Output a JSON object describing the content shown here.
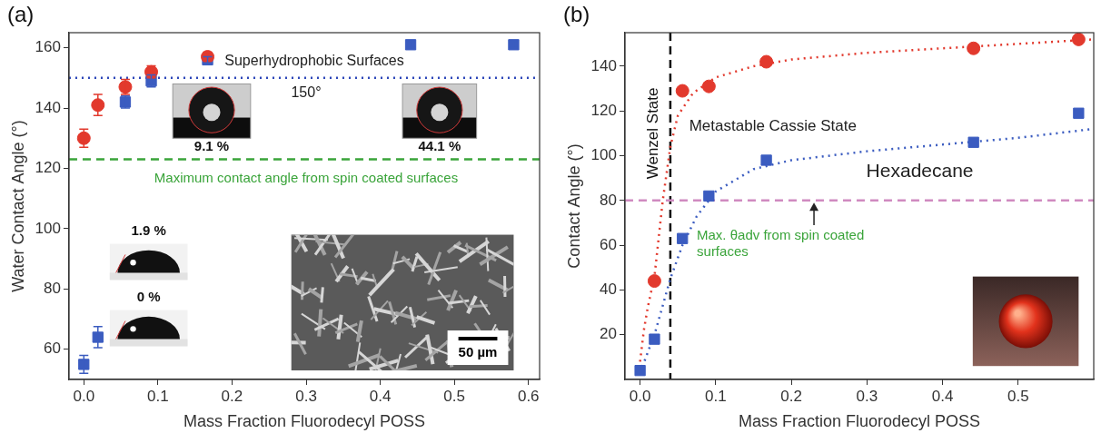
{
  "chart_data": [
    {
      "type": "scatter",
      "title": "(a)",
      "x_label": "Mass Fraction Fluorodecyl POSS",
      "y_label": "Water Contact Angle (°)",
      "xlim": [
        -0.02,
        0.615
      ],
      "xticks": [
        {
          "value": 0,
          "label": "0.0"
        },
        {
          "value": 0.1,
          "label": "0.1"
        },
        {
          "value": 0.2,
          "label": "0.2"
        },
        {
          "value": 0.3,
          "label": "0.3"
        },
        {
          "value": 0.4,
          "label": "0.4"
        },
        {
          "value": 0.5,
          "label": "0.5"
        },
        {
          "value": 0.6,
          "label": "0.6"
        }
      ],
      "ylim": [
        50,
        165
      ],
      "yticks": [
        60,
        80,
        100,
        120,
        140,
        160
      ],
      "grid": false,
      "series": [
        {
          "type": "scatter",
          "marker": "circle",
          "color": "#e2392d",
          "x": [
            0,
            0.019,
            0.056,
            0.091,
            0.167
          ],
          "values": [
            130,
            141,
            147,
            152,
            157
          ],
          "errors": [
            3,
            3.5,
            2.5,
            2,
            1.5
          ]
        },
        {
          "type": "scatter",
          "marker": "square",
          "color": "#3b5cc0",
          "x": [
            0,
            0.019,
            0.056,
            0.091,
            0.167,
            0.441,
            0.58
          ],
          "values": [
            55,
            64,
            142,
            149,
            156,
            161,
            161
          ],
          "errors": [
            3,
            3.5,
            2,
            2,
            1,
            1,
            1
          ]
        }
      ],
      "reference_lines": [
        {
          "axis": "y",
          "value": 150,
          "color": "#2b45b8",
          "line_style": "dotted",
          "label": "150°"
        },
        {
          "axis": "y",
          "value": 123,
          "color": "#3aa43a",
          "line_style": "dashed",
          "label": "Maximum contact angle from spin coated surfaces"
        }
      ],
      "annotations": [
        "Superhydrophobic Surfaces"
      ],
      "insets": [
        {
          "label": "9.1 %"
        },
        {
          "label": "44.1 %"
        },
        {
          "label": "1.9 %"
        },
        {
          "label": "0 %"
        },
        {
          "label": "50 µm"
        }
      ]
    },
    {
      "type": "scatter",
      "title": "(b)",
      "x_label": "Mass Fraction Fluorodecyl POSS",
      "y_label": "Contact Angle (°)",
      "xlim": [
        -0.02,
        0.6
      ],
      "xticks": [
        {
          "value": 0,
          "label": "0.0"
        },
        {
          "value": 0.1,
          "label": "0.1"
        },
        {
          "value": 0.2,
          "label": "0.2"
        },
        {
          "value": 0.3,
          "label": "0.3"
        },
        {
          "value": 0.4,
          "label": "0.4"
        },
        {
          "value": 0.5,
          "label": "0.5"
        }
      ],
      "ylim": [
        0,
        155
      ],
      "yticks": [
        20,
        40,
        60,
        80,
        100,
        120,
        140
      ],
      "grid": false,
      "series": [
        {
          "type": "scatter",
          "marker": "circle",
          "color": "#e2392d",
          "x": [
            0.019,
            0.056,
            0.091,
            0.167,
            0.441,
            0.58
          ],
          "values": [
            44,
            129,
            131,
            142,
            148,
            152
          ]
        },
        {
          "type": "scatter",
          "marker": "square",
          "color": "#3b5cc0",
          "x": [
            0,
            0.019,
            0.056,
            0.091,
            0.167,
            0.441,
            0.58
          ],
          "values": [
            4,
            18,
            63,
            82,
            98,
            106,
            119
          ]
        },
        {
          "type": "line",
          "marker": "none",
          "line_style": "dotted",
          "color": "#e2392d",
          "x": [
            0,
            0.005,
            0.01,
            0.019,
            0.03,
            0.04,
            0.05,
            0.07,
            0.1,
            0.15,
            0.2,
            0.3,
            0.4,
            0.5,
            0.6
          ],
          "values": [
            8,
            22,
            32,
            46,
            80,
            104,
            118,
            128,
            135,
            140,
            143,
            146,
            148,
            150,
            152
          ]
        },
        {
          "type": "line",
          "marker": "none",
          "line_style": "dotted",
          "color": "#3b5cc0",
          "x": [
            0,
            0.01,
            0.019,
            0.03,
            0.04,
            0.056,
            0.075,
            0.1,
            0.15,
            0.2,
            0.3,
            0.4,
            0.5,
            0.6
          ],
          "values": [
            3,
            12,
            20,
            33,
            45,
            60,
            73,
            84,
            94,
            98,
            102,
            105,
            108,
            112
          ]
        }
      ],
      "reference_lines": [
        {
          "axis": "x",
          "value": 0.04,
          "color": "#111111",
          "line_style": "dashed",
          "label": "Wenzel State"
        },
        {
          "axis": "y",
          "value": 80,
          "color": "#d08ac0",
          "line_style": "dashed",
          "label": "Max. θadv from spin coated surfaces"
        }
      ],
      "annotations": [
        "Metastable Cassie State",
        "Hexadecane"
      ]
    }
  ]
}
